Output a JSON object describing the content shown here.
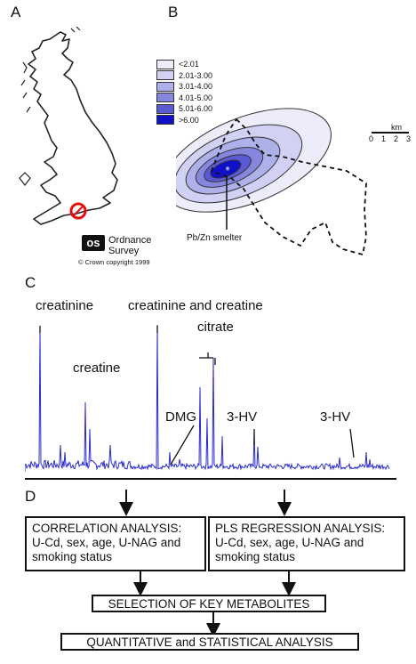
{
  "panels": {
    "a": "A",
    "b": "B",
    "c": "C",
    "d": "D"
  },
  "panel_a": {
    "os_logo_text": "os",
    "os_line1": "Ordnance",
    "os_line2": "Survey",
    "copyright": "© Crown copyright 1999"
  },
  "panel_b": {
    "legend": [
      {
        "label": "<2.01",
        "color": "#ececfa"
      },
      {
        "label": "2.01-3.00",
        "color": "#d0d1f3"
      },
      {
        "label": "3.01-4.00",
        "color": "#aeb0ea"
      },
      {
        "label": "4.01-5.00",
        "color": "#8587df"
      },
      {
        "label": "5.01-6.00",
        "color": "#5a5bd2"
      },
      {
        "label": ">6.00",
        "color": "#1010c8"
      }
    ],
    "scale_unit": "km",
    "scale_ticks": [
      "0",
      "1",
      "2",
      "3"
    ],
    "smelter_label": "Pb/Zn smelter"
  },
  "panel_c": {
    "labels": {
      "creatinine": "creatinine",
      "creatinine_creatine": "creatinine and creatine",
      "citrate": "citrate",
      "creatine": "creatine",
      "dmg": "DMG",
      "hv1": "3-HV",
      "hv2": "3-HV"
    },
    "spectrum_color": "#2a2ad0"
  },
  "panel_d": {
    "correlation": [
      "CORRELATION ANALYSIS:",
      "U-Cd, sex, age, U-NAG and",
      "smoking status"
    ],
    "pls": [
      "PLS REGRESSION ANALYSIS:",
      "U-Cd, sex, age, U-NAG and",
      "smoking status"
    ],
    "selection": "SELECTION OF KEY METABOLITES",
    "quantitative": "QUANTITATIVE and STATISTICAL  ANALYSIS"
  }
}
